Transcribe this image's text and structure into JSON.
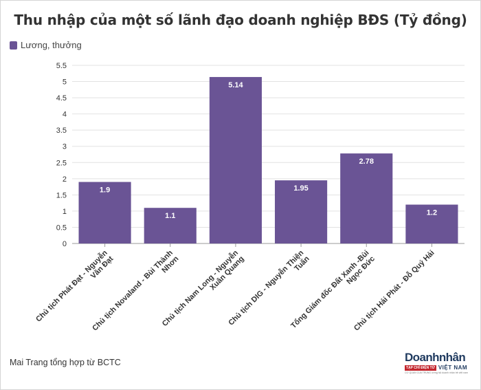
{
  "chart_data": {
    "type": "bar",
    "title": "Thu nhập của một số lãnh đạo doanh nghiệp BĐS (Tỷ đồng)",
    "series": [
      {
        "name": "Lương, thưởng",
        "values": [
          1.9,
          1.1,
          5.14,
          1.95,
          2.78,
          1.2
        ]
      }
    ],
    "categories": [
      [
        "Chủ tịch Phát Đạt - Nguyễn",
        "Văn Đạt"
      ],
      [
        "Chủ tịch Novaland - Bùi Thành",
        "Nhơn"
      ],
      [
        "Chủ tịch Nam Long - Nguyễn",
        "Xuân Quang"
      ],
      [
        "Chủ tịch DIG - Nguyễn Thiện",
        "Tuấn"
      ],
      [
        "Tổng Giám đốc Đất Xanh -Bùi",
        "Ngọc Đức"
      ],
      [
        "Chủ tịch Hải Phát - Đỗ Quý Hải"
      ]
    ],
    "data_labels": [
      "1.9",
      "1.1",
      "5.14",
      "1.95",
      "2.78",
      "1.2"
    ],
    "yticks": [
      "0",
      "0.5",
      "1",
      "1.5",
      "2",
      "2.5",
      "3",
      "3.5",
      "4",
      "4.5",
      "5",
      "5.5"
    ],
    "ylim": [
      0,
      5.5
    ],
    "grid": true,
    "legend_position": "top-left",
    "bar_color": "#6a5495",
    "xlabel": "",
    "ylabel": ""
  },
  "footer": {
    "source": "Mai Trang tổng hợp từ BCTC",
    "logo_text_1": "Doanh",
    "logo_text_2": "nhân",
    "logo_tag": "TẠP CHÍ ĐIỆN TỬ",
    "logo_country": "VIỆT NAM",
    "logo_tiny": "CƠ QUAN CỦA TRUNG ương hội doanh nhân trẻ việt nam"
  }
}
